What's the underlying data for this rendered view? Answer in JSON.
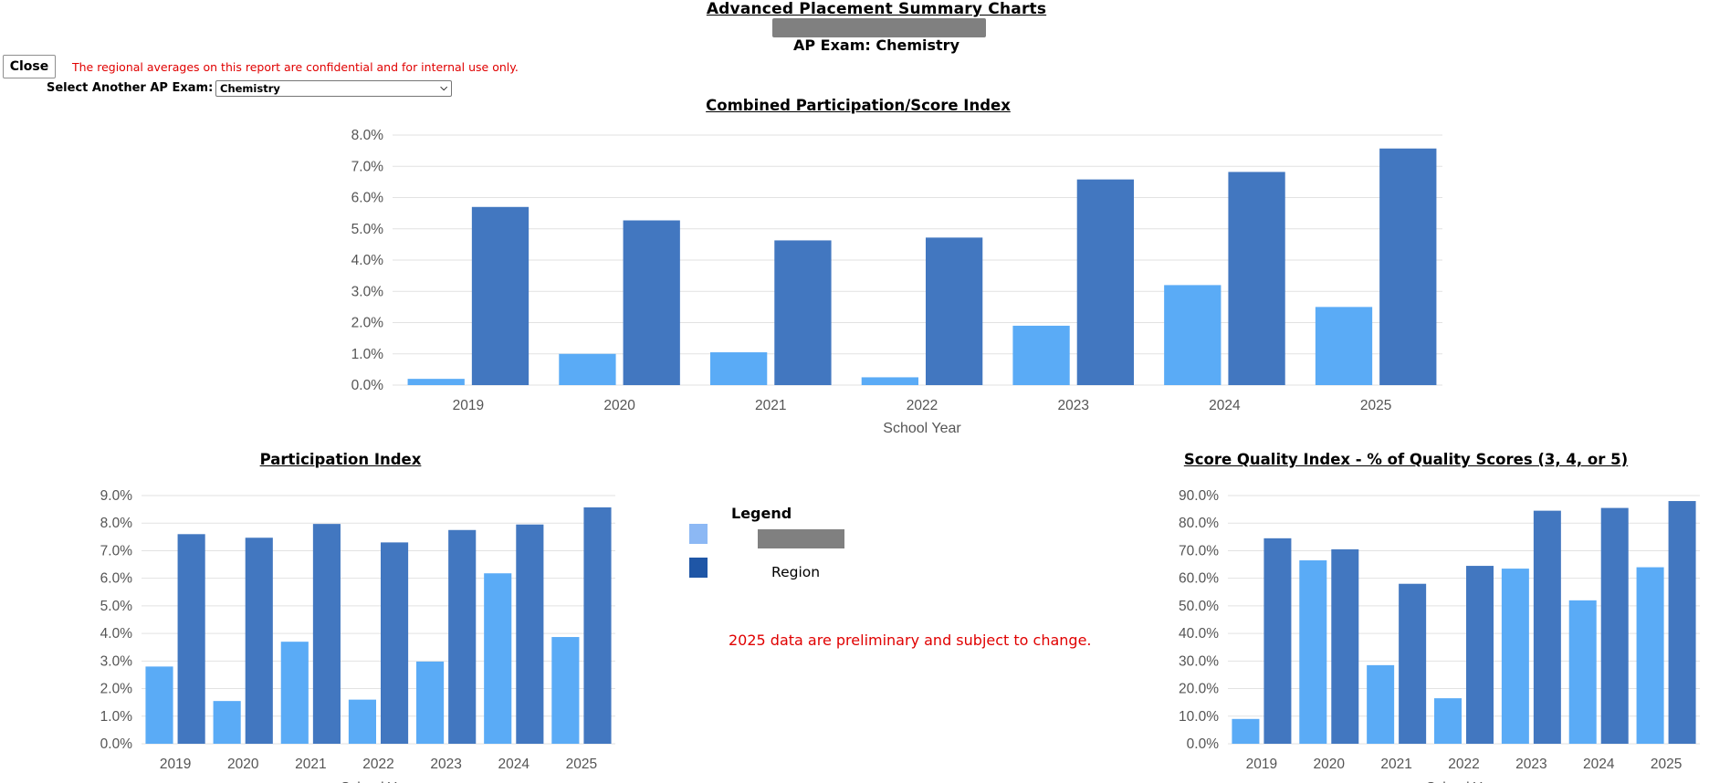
{
  "header": {
    "title": "Advanced Placement Summary Charts",
    "exam_label": "AP Exam: Chemistry"
  },
  "controls": {
    "close_label": "Close",
    "notice": "The regional averages on this report are confidential and for internal use only.",
    "select_label": "Select Another AP Exam:",
    "selected_exam": "Chemistry"
  },
  "colors": {
    "school_bar": "#5aabf6",
    "region_bar": "#4277c0",
    "legend_school": "#8cb8f4",
    "legend_region": "#1f56a6",
    "grid": "#e2e2e2",
    "axis_text": "#555555",
    "notice": "#e00000"
  },
  "legend": {
    "title": "Legend",
    "region_label": "Region"
  },
  "note": "2025 data are preliminary and subject to change.",
  "chart_data": [
    {
      "type": "bar",
      "title": "Combined Participation/Score Index",
      "xlabel": "School Year",
      "categories": [
        "2019",
        "2020",
        "2021",
        "2022",
        "2023",
        "2024",
        "2025"
      ],
      "series": [
        {
          "values": [
            0.2,
            1.0,
            1.05,
            0.25,
            1.9,
            3.2,
            2.5
          ]
        },
        {
          "name": "Region",
          "values": [
            5.7,
            5.27,
            4.63,
            4.72,
            6.58,
            6.82,
            7.57
          ]
        }
      ],
      "ylim": [
        0,
        8
      ],
      "yticks": [
        "0.0%",
        "1.0%",
        "2.0%",
        "3.0%",
        "4.0%",
        "5.0%",
        "6.0%",
        "7.0%",
        "8.0%"
      ],
      "grid": true
    },
    {
      "type": "bar",
      "title": "Participation Index",
      "xlabel": "School Year",
      "categories": [
        "2019",
        "2020",
        "2021",
        "2022",
        "2023",
        "2024",
        "2025"
      ],
      "series": [
        {
          "values": [
            2.8,
            1.55,
            3.7,
            1.6,
            2.98,
            6.18,
            3.87
          ]
        },
        {
          "name": "Region",
          "values": [
            7.6,
            7.47,
            7.97,
            7.3,
            7.75,
            7.95,
            8.57
          ]
        }
      ],
      "ylim": [
        0,
        9
      ],
      "yticks": [
        "0.0%",
        "1.0%",
        "2.0%",
        "3.0%",
        "4.0%",
        "5.0%",
        "6.0%",
        "7.0%",
        "8.0%",
        "9.0%"
      ],
      "grid": true
    },
    {
      "type": "bar",
      "title": "Score Quality Index - % of Quality Scores (3, 4, or 5)",
      "xlabel": "School Year",
      "categories": [
        "2019",
        "2020",
        "2021",
        "2022",
        "2023",
        "2024",
        "2025"
      ],
      "series": [
        {
          "values": [
            9.0,
            66.5,
            28.5,
            16.5,
            63.5,
            52.0,
            64.0
          ]
        },
        {
          "name": "Region",
          "values": [
            74.5,
            70.5,
            58.0,
            64.5,
            84.5,
            85.5,
            88.0
          ]
        }
      ],
      "ylim": [
        0,
        90
      ],
      "yticks": [
        "0.0%",
        "10.0%",
        "20.0%",
        "30.0%",
        "40.0%",
        "50.0%",
        "60.0%",
        "70.0%",
        "80.0%",
        "90.0%"
      ],
      "grid": true
    }
  ]
}
